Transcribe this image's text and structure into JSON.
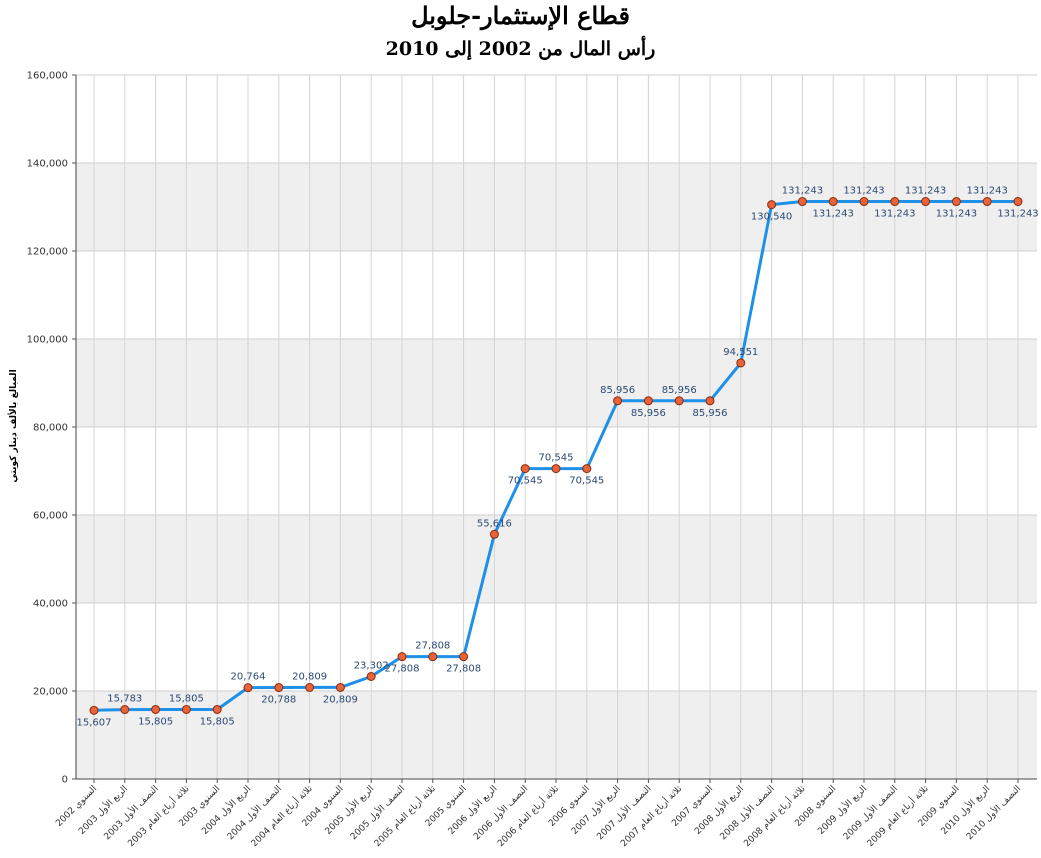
{
  "chart_data": {
    "type": "line",
    "title": "قطاع الإستثمار-جلوبل",
    "subtitle": "رأس المال من 2002 إلى 2010",
    "ylabel": "المبالغ بالألف دينار كويتي",
    "ylim": [
      0,
      160000
    ],
    "yticks": [
      "0",
      "20,000",
      "40,000",
      "60,000",
      "80,000",
      "100,000",
      "120,000",
      "140,000",
      "160,000"
    ],
    "grid": true,
    "band_color": "#efefef",
    "line_color": "#1e90e8",
    "marker_color": "#e8633a",
    "categories": [
      "السنوي 2002",
      "الربع الأول 2003",
      "النصف الأول 2003",
      "ثلاثة أرباع العام 2003",
      "السنوي 2003",
      "الربع الأول 2004",
      "النصف الأول 2004",
      "ثلاثة أرباع العام 2004",
      "السنوي 2004",
      "الربع الأول 2005",
      "النصف الأول 2005",
      "ثلاثة أرباع العام 2005",
      "السنوي 2005",
      "الربع الأول 2006",
      "النصف الأول 2006",
      "ثلاثة أرباع العام 2006",
      "السنوي 2006",
      "الربع الأول 2007",
      "النصف الأول 2007",
      "ثلاثة أرباع العام 2007",
      "السنوي 2007",
      "الربع الأول 2008",
      "النصف الأول 2008",
      "ثلاثة أرباع العام 2008",
      "السنوي 2008",
      "الربع الأول 2009",
      "النصف الأول 2009",
      "ثلاثة أرباع العام 2009",
      "السنوي 2009",
      "الربع الأول 2010",
      "النصف الأول 2010"
    ],
    "values": [
      15607,
      15783,
      15805,
      15805,
      15805,
      20764,
      20788,
      20809,
      20809,
      23302,
      27808,
      27808,
      27808,
      55616,
      70545,
      70545,
      70545,
      85956,
      85956,
      85956,
      85956,
      94551,
      130540,
      131243,
      131243,
      131243,
      131243,
      131243,
      131243,
      131243,
      131243
    ],
    "labels": [
      "15,607",
      "15,783",
      "15,805",
      "15,805",
      "15,805",
      "20,764",
      "20,788",
      "20,809",
      "20,809",
      "23,302",
      "27,808",
      "27,808",
      "27,808",
      "55,616",
      "70,545",
      "70,545",
      "70,545",
      "85,956",
      "85,956",
      "85,956",
      "85,956",
      "94,551",
      "130,540",
      "131,243",
      "131,243",
      "131,243",
      "131,243",
      "131,243",
      "131,243",
      "131,243",
      "131,243"
    ]
  }
}
